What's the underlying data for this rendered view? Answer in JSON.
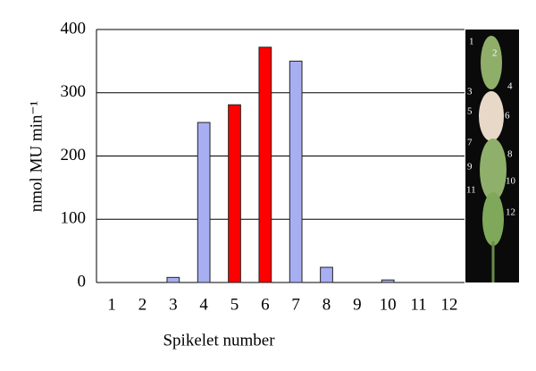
{
  "chart_data": {
    "type": "bar",
    "x_label": "Spikelet number",
    "y_label": "nmol MU min⁻¹",
    "categories": [
      "1",
      "2",
      "3",
      "4",
      "5",
      "6",
      "7",
      "8",
      "9",
      "10",
      "11",
      "12"
    ],
    "values": [
      0,
      0,
      8,
      253,
      281,
      372,
      350,
      24,
      0,
      4,
      0,
      0
    ],
    "colors": [
      "#a8aef2",
      "#a8aef2",
      "#a8aef2",
      "#a8aef2",
      "#ff0000",
      "#ff0000",
      "#a8aef2",
      "#a8aef2",
      "#a8aef2",
      "#a8aef2",
      "#a8aef2",
      "#a8aef2"
    ],
    "ylim": [
      0,
      400
    ],
    "yticks": [
      0,
      100,
      200,
      300,
      400
    ],
    "grid": true,
    "image_labels": [
      "1",
      "2",
      "3",
      "4",
      "5",
      "6",
      "7",
      "8",
      "9",
      "10",
      "11",
      "12"
    ]
  }
}
